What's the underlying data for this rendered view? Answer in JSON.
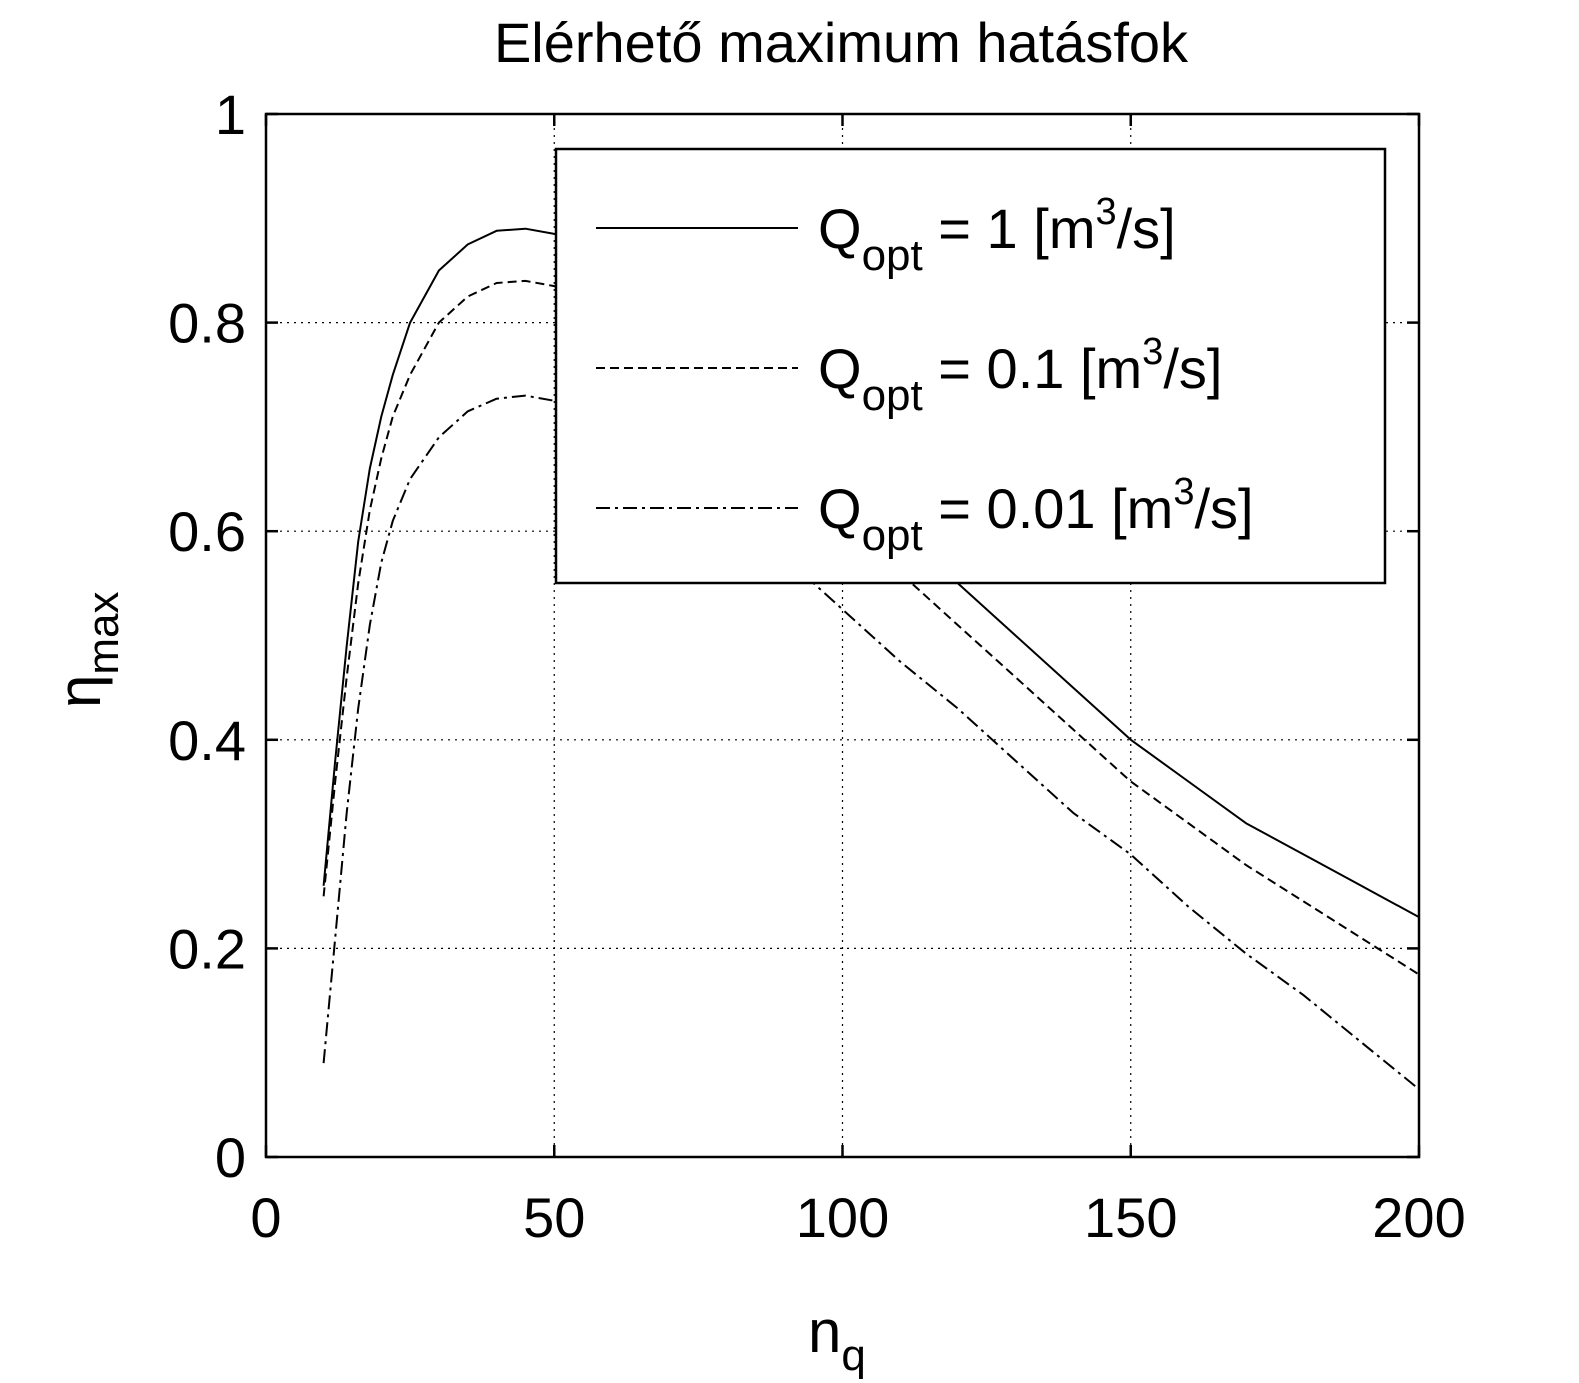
{
  "chart_data": {
    "type": "line",
    "title": "Elérhető maximum hatásfok",
    "xlabel": {
      "base": "n",
      "sub": "q"
    },
    "ylabel": {
      "base": "η",
      "sub": "max"
    },
    "xlim": [
      0,
      200
    ],
    "ylim": [
      0,
      1
    ],
    "xticks": [
      "0",
      "50",
      "100",
      "150",
      "200"
    ],
    "yticks": [
      "0",
      "0.2",
      "0.4",
      "0.6",
      "0.8",
      "1"
    ],
    "grid": true,
    "legend_position": "top-right",
    "series": [
      {
        "name": "Q_opt = 1 [m^3/s]",
        "legend": {
          "base": "Q",
          "sub": "opt",
          "pre": " = 1 [m",
          "sup": "3",
          "post": "/s]"
        },
        "style": "solid",
        "x": [
          10,
          12,
          14,
          16,
          18,
          20,
          22,
          25,
          30,
          35,
          40,
          45,
          50,
          60,
          70,
          80,
          90,
          100,
          110,
          120,
          130,
          140,
          150,
          160,
          170,
          180,
          190,
          200
        ],
        "y": [
          0.26,
          0.38,
          0.49,
          0.59,
          0.66,
          0.71,
          0.75,
          0.8,
          0.85,
          0.875,
          0.888,
          0.89,
          0.885,
          0.86,
          0.825,
          0.78,
          0.72,
          0.66,
          0.6,
          0.55,
          0.5,
          0.45,
          0.4,
          0.36,
          0.32,
          0.29,
          0.26,
          0.23
        ]
      },
      {
        "name": "Q_opt = 0.1 [m^3/s]",
        "legend": {
          "base": "Q",
          "sub": "opt",
          "pre": " = 0.1 [m",
          "sup": "3",
          "post": "/s]"
        },
        "style": "dashed",
        "x": [
          10,
          12,
          14,
          16,
          18,
          20,
          22,
          25,
          30,
          35,
          40,
          45,
          50,
          60,
          70,
          80,
          90,
          100,
          110,
          120,
          130,
          140,
          150,
          160,
          170,
          180,
          190,
          200
        ],
        "y": [
          0.25,
          0.36,
          0.46,
          0.55,
          0.62,
          0.67,
          0.71,
          0.75,
          0.8,
          0.825,
          0.838,
          0.84,
          0.835,
          0.81,
          0.775,
          0.73,
          0.67,
          0.61,
          0.56,
          0.51,
          0.46,
          0.41,
          0.36,
          0.32,
          0.28,
          0.245,
          0.21,
          0.175
        ]
      },
      {
        "name": "Q_opt = 0.01 [m^3/s]",
        "legend": {
          "base": "Q",
          "sub": "opt",
          "pre": " = 0.01 [m",
          "sup": "3",
          "post": "/s]"
        },
        "style": "dashdot",
        "x": [
          10,
          12,
          14,
          16,
          18,
          20,
          22,
          25,
          30,
          35,
          40,
          45,
          50,
          60,
          70,
          80,
          90,
          100,
          110,
          120,
          130,
          140,
          150,
          160,
          170,
          180,
          190,
          200
        ],
        "y": [
          0.09,
          0.21,
          0.33,
          0.43,
          0.51,
          0.57,
          0.61,
          0.65,
          0.69,
          0.715,
          0.727,
          0.73,
          0.725,
          0.705,
          0.67,
          0.625,
          0.575,
          0.525,
          0.475,
          0.43,
          0.38,
          0.33,
          0.29,
          0.24,
          0.195,
          0.155,
          0.11,
          0.065
        ]
      }
    ]
  }
}
